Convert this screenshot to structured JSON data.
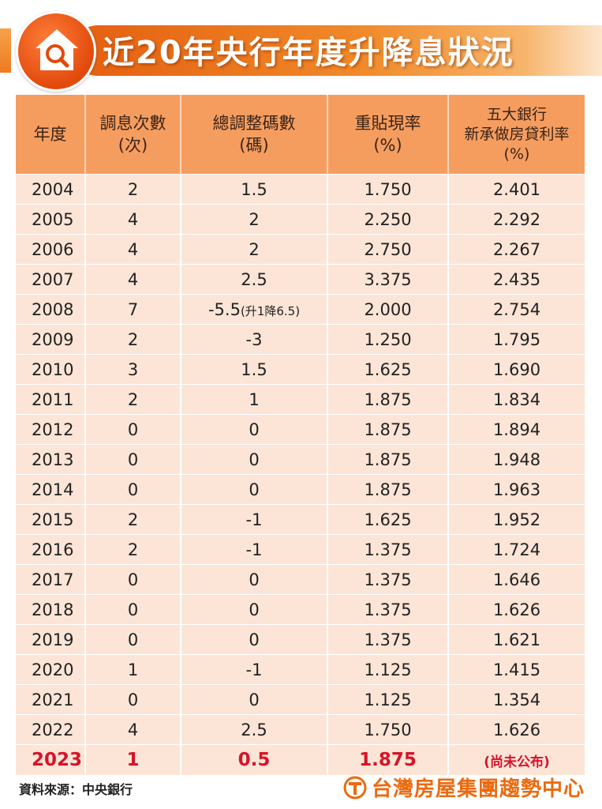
{
  "title": "近20年央行年度升降息狀況",
  "table": {
    "headers": [
      [
        "年度"
      ],
      [
        "調息次數",
        "(次)"
      ],
      [
        "總調整碼數",
        "(碼)"
      ],
      [
        "重貼現率",
        "(%)"
      ],
      [
        "五大銀行",
        "新承做房貸利率",
        "(%)"
      ]
    ],
    "rows": [
      [
        "2004",
        "2",
        "1.5",
        "1.750",
        "2.401"
      ],
      [
        "2005",
        "4",
        "2",
        "2.250",
        "2.292"
      ],
      [
        "2006",
        "4",
        "2",
        "2.750",
        "2.267"
      ],
      [
        "2007",
        "4",
        "2.5",
        "3.375",
        "2.435"
      ],
      [
        "2008",
        "7",
        "-5.5",
        "2.000",
        "2.754"
      ],
      [
        "2009",
        "2",
        "-3",
        "1.250",
        "1.795"
      ],
      [
        "2010",
        "3",
        "1.5",
        "1.625",
        "1.690"
      ],
      [
        "2011",
        "2",
        "1",
        "1.875",
        "1.834"
      ],
      [
        "2012",
        "0",
        "0",
        "1.875",
        "1.894"
      ],
      [
        "2013",
        "0",
        "0",
        "1.875",
        "1.948"
      ],
      [
        "2014",
        "0",
        "0",
        "1.875",
        "1.963"
      ],
      [
        "2015",
        "2",
        "-1",
        "1.625",
        "1.952"
      ],
      [
        "2016",
        "2",
        "-1",
        "1.375",
        "1.724"
      ],
      [
        "2017",
        "0",
        "0",
        "1.375",
        "1.646"
      ],
      [
        "2018",
        "0",
        "0",
        "1.375",
        "1.626"
      ],
      [
        "2019",
        "0",
        "0",
        "1.375",
        "1.621"
      ],
      [
        "2020",
        "1",
        "-1",
        "1.125",
        "1.415"
      ],
      [
        "2021",
        "0",
        "0",
        "1.125",
        "1.354"
      ],
      [
        "2022",
        "4",
        "2.5",
        "1.750",
        "1.626"
      ]
    ],
    "row_2008_note": "(升1降6.5)",
    "highlight_row": [
      "2023",
      "1",
      "0.5",
      "1.875",
      "(尚未公布)"
    ]
  },
  "footer": {
    "source": "資料來源：中央銀行",
    "brand": "台灣房屋集團趨勢中心"
  },
  "colors": {
    "header_bg": "#f59d5f",
    "row_bg": "#fce5d6",
    "highlight_text": "#d8132a",
    "brand_orange": "#ec6a10"
  },
  "icons": {
    "title": "house-search-icon",
    "brand": "brand-logo-icon"
  }
}
